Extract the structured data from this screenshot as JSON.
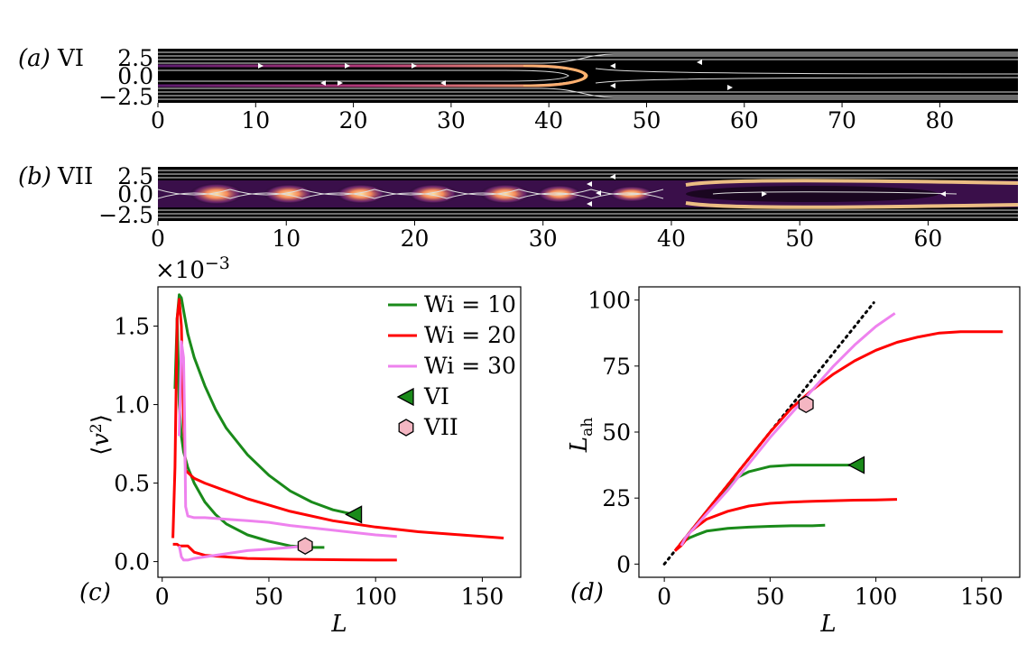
{
  "colors": {
    "wi10": "#1a8a1a",
    "wi20": "#ff0000",
    "wi30": "#ee82ee",
    "panel_bg": "#000000"
  },
  "panels": {
    "a": {
      "letter": "(a)",
      "name": "VI"
    },
    "b": {
      "letter": "(b)",
      "name": "VII"
    },
    "c": {
      "letter": "(c)",
      "multiplier": "×10",
      "multiplier_exp": "−3"
    },
    "d": {
      "letter": "(d)"
    }
  },
  "chart_data": [
    {
      "panel": "a",
      "type": "heatmap",
      "xlim": [
        0,
        88
      ],
      "ylim": [
        -3,
        3
      ],
      "xticks": [
        0,
        10,
        20,
        30,
        40,
        50,
        60,
        70,
        80
      ],
      "yticks": [
        "2.5",
        "0.0",
        "−2.5"
      ],
      "title": "VI"
    },
    {
      "panel": "b",
      "type": "heatmap",
      "xlim": [
        0,
        67
      ],
      "ylim": [
        -3,
        3
      ],
      "xticks": [
        0,
        10,
        20,
        30,
        40,
        50,
        60
      ],
      "yticks": [
        "2.5",
        "0.0",
        "−2.5"
      ],
      "title": "VII"
    },
    {
      "panel": "c",
      "type": "line",
      "xlabel": "L",
      "ylabel": "⟨v²⟩",
      "xlim": [
        -2,
        168
      ],
      "ylim": [
        -0.1,
        1.75
      ],
      "xticks": [
        0,
        50,
        100,
        150
      ],
      "yticks": [
        "0.0",
        "0.5",
        "1.0",
        "1.5"
      ],
      "legend": [
        "Wi = 10",
        "Wi = 20",
        "Wi = 30",
        "VI",
        "VII"
      ],
      "legend_position": "top-right",
      "series": [
        {
          "name": "Wi = 10",
          "color_key": "wi10",
          "branch": "upper",
          "x": [
            6,
            7,
            8,
            9,
            10,
            12,
            15,
            20,
            25,
            30,
            40,
            50,
            60,
            70,
            80,
            90
          ],
          "y": [
            1.1,
            1.55,
            1.7,
            1.68,
            1.6,
            1.45,
            1.3,
            1.12,
            0.97,
            0.85,
            0.68,
            0.55,
            0.45,
            0.38,
            0.33,
            0.3
          ]
        },
        {
          "name": "Wi = 10",
          "color_key": "wi10",
          "branch": "lower",
          "x": [
            7,
            8,
            9,
            10,
            12,
            15,
            20,
            25,
            30,
            40,
            50,
            60,
            70,
            76
          ],
          "y": [
            1.55,
            1.0,
            0.8,
            0.7,
            0.6,
            0.5,
            0.38,
            0.3,
            0.24,
            0.17,
            0.13,
            0.1,
            0.09,
            0.09
          ]
        },
        {
          "name": "Wi = 20",
          "color_key": "wi20",
          "branch": "upper",
          "x": [
            5,
            6,
            7,
            8,
            9,
            10,
            11,
            15,
            20,
            30,
            40,
            50,
            60,
            80,
            100,
            120,
            140,
            160
          ],
          "y": [
            0.15,
            0.6,
            1.55,
            1.67,
            1.5,
            0.9,
            0.58,
            0.53,
            0.5,
            0.45,
            0.4,
            0.36,
            0.32,
            0.26,
            0.22,
            0.19,
            0.17,
            0.15
          ]
        },
        {
          "name": "Wi = 20",
          "color_key": "wi20",
          "branch": "lower",
          "x": [
            5,
            6,
            7,
            8,
            10,
            12,
            15,
            20,
            30,
            40,
            60,
            80,
            100,
            110
          ],
          "y": [
            0.11,
            0.11,
            0.11,
            0.1,
            0.1,
            0.1,
            0.06,
            0.04,
            0.03,
            0.02,
            0.015,
            0.012,
            0.01,
            0.01
          ]
        },
        {
          "name": "Wi = 30",
          "color_key": "wi30",
          "branch": "upper",
          "x": [
            8,
            9,
            10,
            10.5,
            11,
            12,
            15,
            20,
            30,
            40,
            50,
            60,
            80,
            100,
            110
          ],
          "y": [
            0.8,
            1.4,
            1.3,
            0.9,
            0.35,
            0.29,
            0.28,
            0.28,
            0.27,
            0.26,
            0.25,
            0.23,
            0.2,
            0.17,
            0.16
          ]
        },
        {
          "name": "Wi = 30",
          "color_key": "wi30",
          "branch": "lower",
          "x": [
            8,
            9,
            10,
            12,
            15,
            20,
            25,
            30,
            40,
            50,
            60,
            67
          ],
          "y": [
            0.1,
            0.03,
            0.01,
            0.01,
            0.02,
            0.03,
            0.04,
            0.05,
            0.07,
            0.08,
            0.09,
            0.1
          ]
        }
      ],
      "markers": [
        {
          "name": "VI",
          "shape": "triangle-left",
          "color_key": "wi10",
          "x": 90,
          "y": 0.3
        },
        {
          "name": "VII",
          "shape": "hexagon",
          "fill": "#f4b6c2",
          "x": 67,
          "y": 0.1
        }
      ]
    },
    {
      "panel": "d",
      "type": "line",
      "xlabel": "L",
      "ylabel": "L_ah",
      "xlim": [
        -12,
        168
      ],
      "ylim": [
        -5,
        105
      ],
      "xticks": [
        0,
        50,
        100,
        150
      ],
      "yticks": [
        0,
        25,
        50,
        75,
        100
      ],
      "reference_line": {
        "style": "dotted",
        "x": [
          0,
          99
        ],
        "y": [
          0,
          99
        ]
      },
      "series": [
        {
          "name": "Wi = 10",
          "color_key": "wi10",
          "branch": "upper",
          "x": [
            8,
            10,
            15,
            20,
            25,
            30,
            35,
            40,
            50,
            60,
            70,
            80,
            90
          ],
          "y": [
            8,
            10,
            15,
            20,
            25,
            29,
            33,
            35,
            37,
            37.5,
            37.5,
            37.5,
            37.5
          ]
        },
        {
          "name": "Wi = 10",
          "color_key": "wi10",
          "branch": "lower",
          "x": [
            8,
            10,
            12,
            15,
            20,
            30,
            40,
            50,
            60,
            70,
            76
          ],
          "y": [
            8,
            9,
            10,
            11,
            12.5,
            13.5,
            14,
            14.3,
            14.5,
            14.5,
            14.7
          ]
        },
        {
          "name": "Wi = 20",
          "color_key": "wi20",
          "branch": "upper",
          "x": [
            5,
            10,
            20,
            30,
            40,
            50,
            60,
            70,
            80,
            90,
            100,
            110,
            120,
            130,
            140,
            150,
            160
          ],
          "y": [
            5,
            10,
            20,
            30,
            40,
            50,
            59,
            66,
            72,
            77,
            81,
            84,
            86,
            87.5,
            88,
            88,
            88
          ]
        },
        {
          "name": "Wi = 20",
          "color_key": "wi20",
          "branch": "lower",
          "x": [
            5,
            8,
            10,
            12,
            15,
            20,
            30,
            40,
            50,
            60,
            70,
            80,
            90,
            100,
            110
          ],
          "y": [
            5,
            7,
            9,
            12,
            14,
            17,
            20,
            22,
            23,
            23.5,
            23.8,
            24,
            24.2,
            24.3,
            24.5
          ]
        },
        {
          "name": "Wi = 30",
          "color_key": "wi30",
          "branch": "main",
          "x": [
            8,
            10,
            20,
            30,
            40,
            50,
            60,
            70,
            80,
            90,
            100,
            109
          ],
          "y": [
            7,
            10,
            19,
            28,
            38,
            48,
            57,
            66,
            75,
            83,
            90,
            95
          ]
        }
      ],
      "markers": [
        {
          "name": "VI",
          "shape": "triangle-left",
          "color_key": "wi10",
          "x": 91,
          "y": 37.5
        },
        {
          "name": "VII",
          "shape": "hexagon",
          "fill": "#f4b6c2",
          "x": 67,
          "y": 60.5
        }
      ]
    }
  ]
}
